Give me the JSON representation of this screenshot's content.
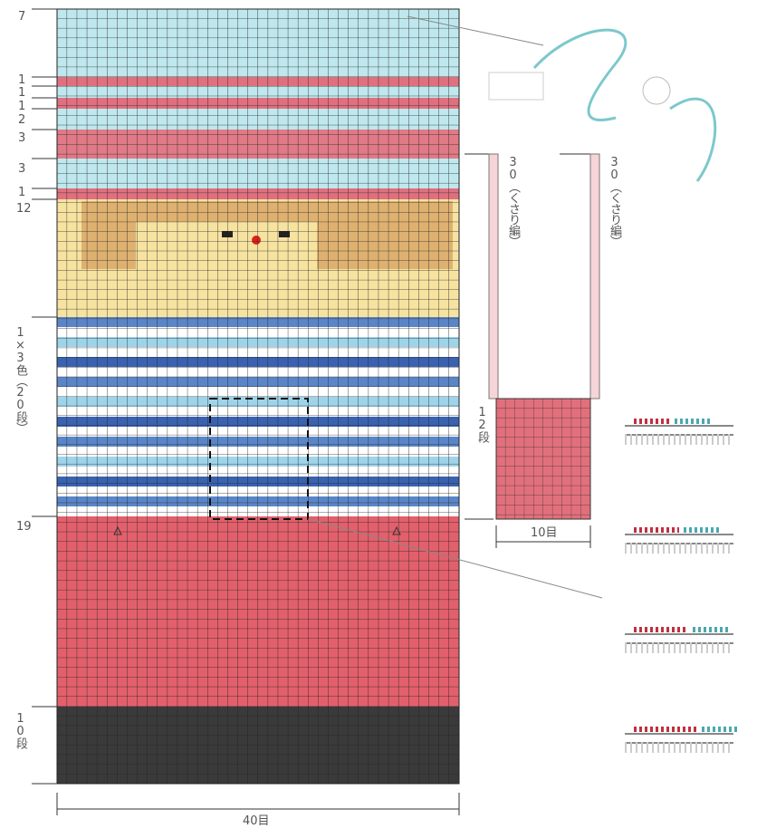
{
  "left_labels": [
    "7",
    "1",
    "1",
    "1",
    "2",
    "3",
    "3",
    "1",
    "12",
    "1×3色（20段）",
    "19",
    "10段"
  ],
  "bottom_label": "40目",
  "right": {
    "chain_labels": [
      "30（くさり編）",
      "30（くさり編）"
    ],
    "rows_label": "12段",
    "stitches_label": "10目"
  }
}
